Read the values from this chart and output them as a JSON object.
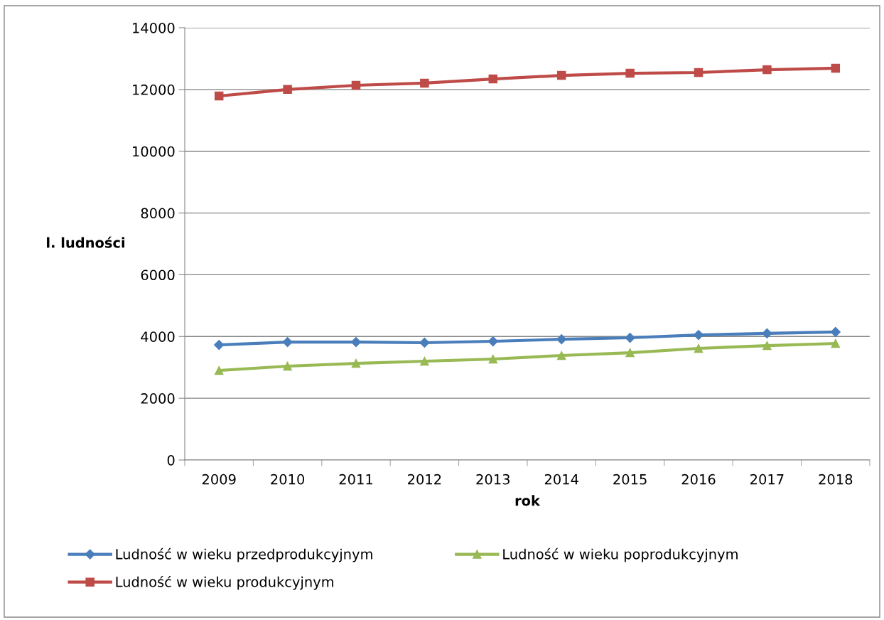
{
  "chart_data": {
    "type": "line",
    "xlabel": "rok",
    "ylabel": "l. ludności",
    "categories": [
      "2009",
      "2010",
      "2011",
      "2012",
      "2013",
      "2014",
      "2015",
      "2016",
      "2017",
      "2018"
    ],
    "series": [
      {
        "name": "Ludność w wieku przedprodukcyjnym",
        "color": "#4a7ebb",
        "marker": "diamond",
        "values": [
          3730,
          3820,
          3820,
          3800,
          3845,
          3910,
          3960,
          4050,
          4100,
          4145
        ]
      },
      {
        "name": "Ludność w wieku produkcyjnym",
        "color": "#be4b48",
        "marker": "square",
        "values": [
          11790,
          12000,
          12135,
          12205,
          12340,
          12455,
          12525,
          12550,
          12640,
          12690
        ]
      },
      {
        "name": "Ludność w wieku poprodukcyjnym",
        "color": "#98b954",
        "marker": "triangle",
        "values": [
          2900,
          3040,
          3130,
          3200,
          3270,
          3385,
          3475,
          3615,
          3705,
          3775
        ]
      }
    ],
    "ylim": [
      0,
      14000
    ],
    "yticks": [
      0,
      2000,
      4000,
      6000,
      8000,
      10000,
      12000,
      14000
    ],
    "grid": "y",
    "legend": "bottom",
    "line_style": "solid"
  }
}
